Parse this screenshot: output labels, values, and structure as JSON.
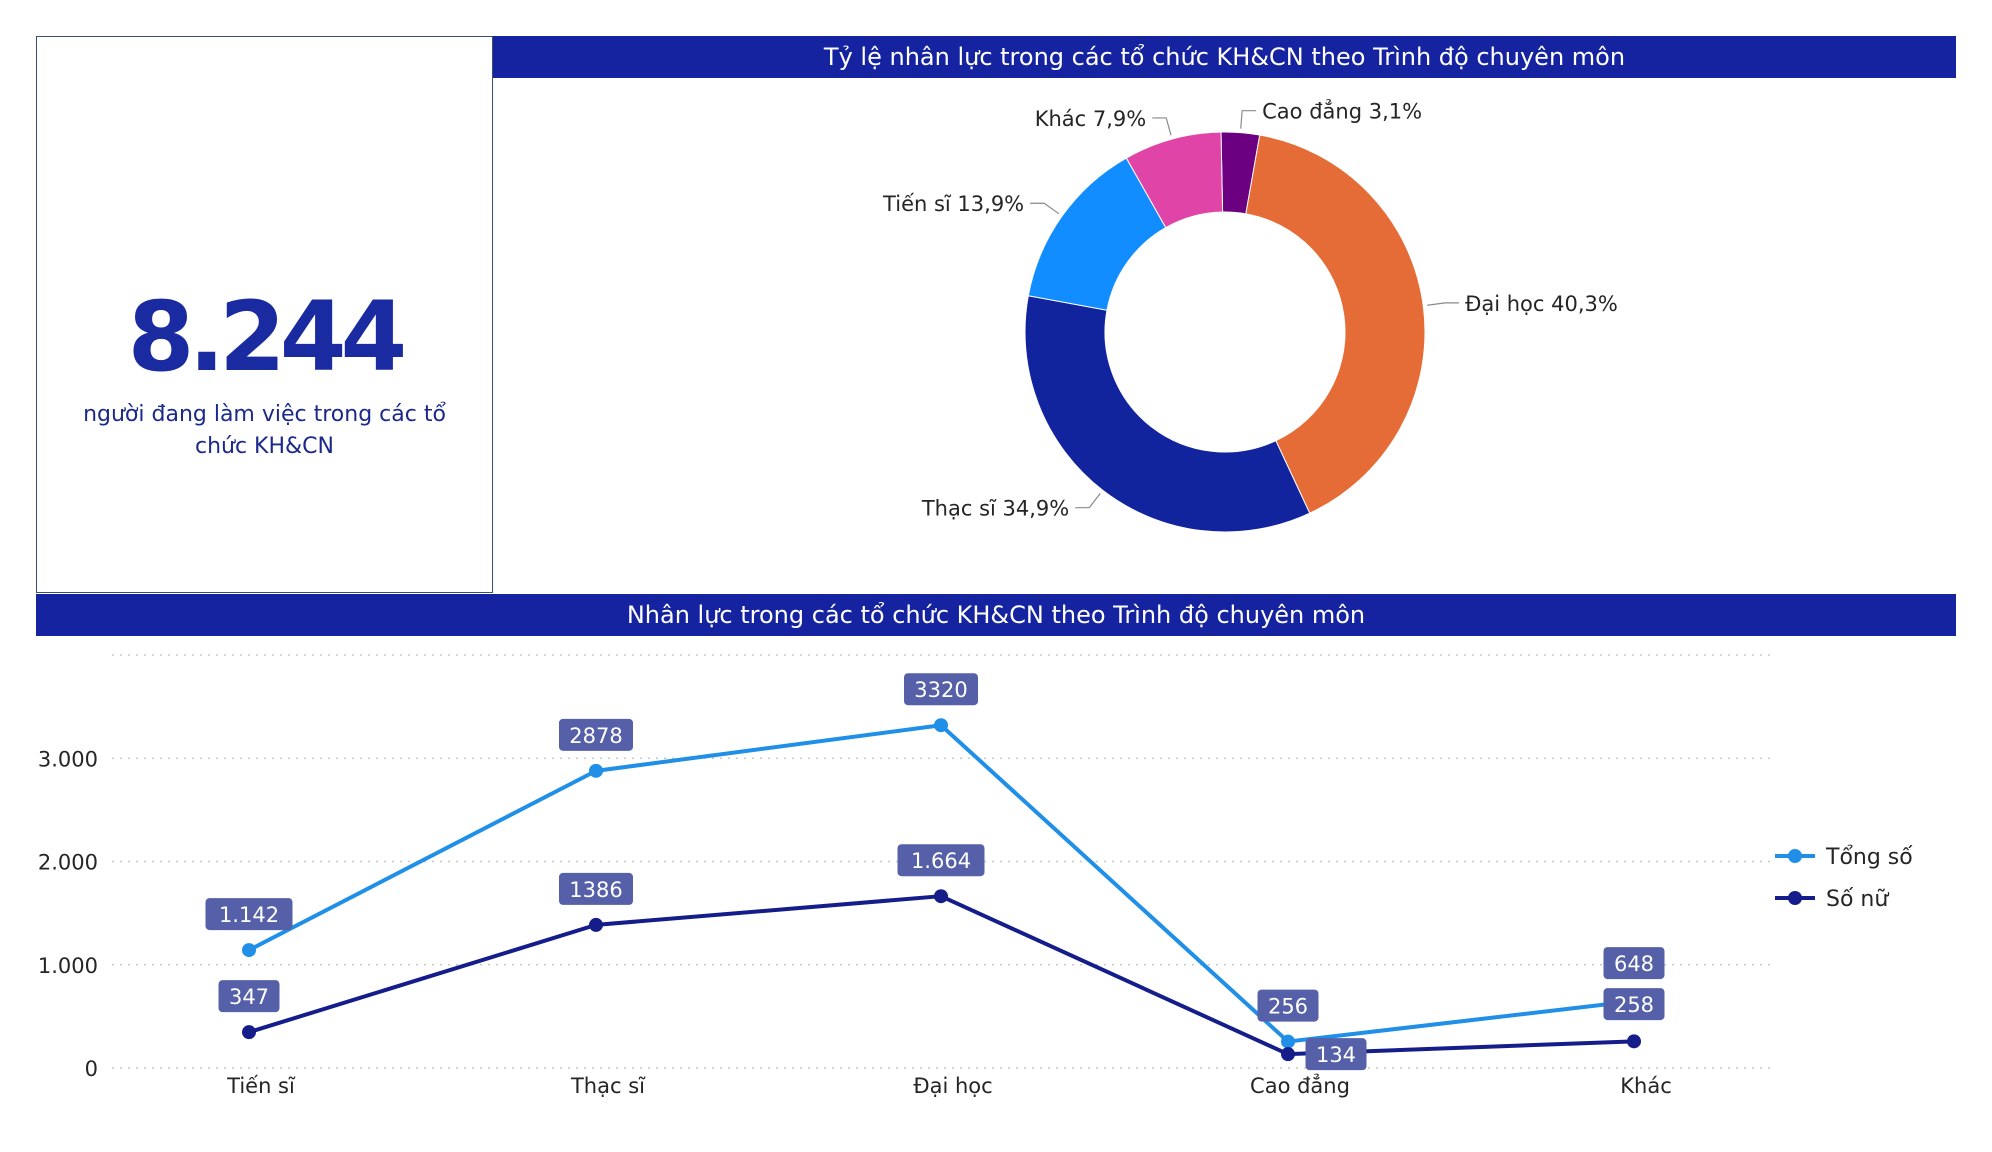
{
  "kpi": {
    "value": "8.244",
    "label": "người đang làm việc trong các tổ chức KH&CN"
  },
  "donut_title": "Tỷ lệ nhân lực trong các tổ chức KH&CN theo Trình độ chuyên môn",
  "line_title": "Nhân lực trong các tổ chức KH&CN theo Trình độ chuyên môn",
  "chart_data": [
    {
      "type": "pie",
      "variant": "donut",
      "title": "Tỷ lệ nhân lực trong các tổ chức KH&CN theo Trình độ chuyên môn",
      "slices": [
        {
          "name": "Cao đẳng",
          "value": 3.1,
          "label": "Cao đẳng 3,1%",
          "color": "#6b0080"
        },
        {
          "name": "Đại học",
          "value": 40.3,
          "label": "Đại học 40,3%",
          "color": "#e66c37"
        },
        {
          "name": "Thạc sĩ",
          "value": 34.9,
          "label": "Thạc sĩ 34,9%",
          "color": "#12239e"
        },
        {
          "name": "Tiến sĩ",
          "value": 13.9,
          "label": "Tiến sĩ 13,9%",
          "color": "#118dff"
        },
        {
          "name": "Khác",
          "value": 7.9,
          "label": "Khác 7,9%",
          "color": "#e044a7"
        }
      ]
    },
    {
      "type": "line",
      "title": "Nhân lực trong các tổ chức KH&CN theo Trình độ chuyên môn",
      "categories": [
        "Tiến sĩ",
        "Thạc sĩ",
        "Đại học",
        "Cao đẳng",
        "Khác"
      ],
      "series": [
        {
          "name": "Tổng số",
          "values": [
            1142,
            2878,
            3320,
            256,
            648
          ],
          "labels": [
            "1.142",
            "2878",
            "3320",
            "256",
            "648"
          ],
          "color": "#1f8fe8"
        },
        {
          "name": "Số nữ",
          "values": [
            347,
            1386,
            1664,
            134,
            258
          ],
          "labels": [
            "347",
            "1386",
            "1.664",
            "134",
            "258"
          ],
          "color": "#141d8a"
        }
      ],
      "yticks": [
        0,
        1000,
        2000,
        3000
      ],
      "ytick_labels": [
        "0",
        "1.000",
        "2.000",
        "3.000"
      ],
      "ylim": [
        0,
        4000
      ],
      "grid": true,
      "legend_position": "right",
      "xlabel": "",
      "ylabel": ""
    }
  ]
}
